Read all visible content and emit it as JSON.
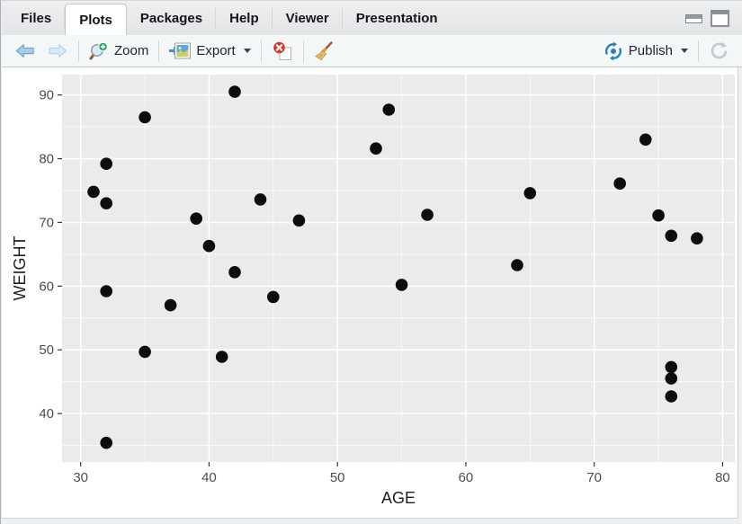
{
  "tabs": {
    "items": [
      {
        "label": "Files",
        "active": false
      },
      {
        "label": "Plots",
        "active": true
      },
      {
        "label": "Packages",
        "active": false
      },
      {
        "label": "Help",
        "active": false
      },
      {
        "label": "Viewer",
        "active": false
      },
      {
        "label": "Presentation",
        "active": false
      }
    ]
  },
  "window_controls": {
    "minimize_icon": "minimize-icon",
    "maximize_icon": "maximize-icon"
  },
  "toolbar": {
    "back": {
      "icon": "arrow-left-icon",
      "enabled": false
    },
    "forward": {
      "icon": "arrow-right-icon",
      "enabled": false
    },
    "zoom": {
      "label": "Zoom",
      "icon": "magnifier-plus-icon"
    },
    "export": {
      "label": "Export",
      "icon": "image-export-icon",
      "has_dropdown": true
    },
    "remove_plot": {
      "icon": "red-x-page-icon"
    },
    "clear_plots": {
      "icon": "broom-icon"
    },
    "publish": {
      "label": "Publish",
      "icon": "publish-swirl-icon",
      "has_dropdown": true
    },
    "refresh": {
      "icon": "refresh-icon"
    }
  },
  "colors": {
    "panel_background": "#ebebeb",
    "gridline": "#ffffff",
    "point": "#0d0d0d",
    "tick_text": "#4d4d4d",
    "axis_title": "#1f1f1f",
    "toolbar_background": "#f4f7f8",
    "tabbar_background": "#e6e8ea",
    "publish_blue": "#2f7cbe",
    "remove_red": "#d8372a"
  },
  "chart_data": {
    "type": "scatter",
    "title": "",
    "xlabel": "AGE",
    "ylabel": "WEIGHT",
    "xlim": [
      28.55,
      80.95
    ],
    "ylim": [
      32.4,
      93.2
    ],
    "x_ticks": [
      30,
      40,
      50,
      60,
      70,
      80
    ],
    "x_minor_ticks": [
      35,
      45,
      55,
      65,
      75
    ],
    "y_ticks": [
      40,
      50,
      60,
      70,
      80,
      90
    ],
    "y_minor_ticks": [
      35,
      45,
      55,
      65,
      75,
      85
    ],
    "grid": true,
    "legend": "none",
    "points": [
      [
        31,
        74.8
      ],
      [
        32,
        79.2
      ],
      [
        32,
        73.0
      ],
      [
        32,
        59.2
      ],
      [
        32,
        35.4
      ],
      [
        35,
        86.5
      ],
      [
        35,
        49.7
      ],
      [
        37,
        57.0
      ],
      [
        39,
        70.6
      ],
      [
        40,
        66.3
      ],
      [
        41,
        48.9
      ],
      [
        42,
        90.5
      ],
      [
        42,
        62.2
      ],
      [
        44,
        73.6
      ],
      [
        45,
        58.3
      ],
      [
        47,
        70.3
      ],
      [
        53,
        81.6
      ],
      [
        54,
        87.7
      ],
      [
        55,
        60.2
      ],
      [
        57,
        71.2
      ],
      [
        64,
        63.3
      ],
      [
        65,
        74.6
      ],
      [
        72,
        76.1
      ],
      [
        74,
        83.0
      ],
      [
        75,
        71.1
      ],
      [
        76,
        67.9
      ],
      [
        76,
        47.3
      ],
      [
        76,
        45.5
      ],
      [
        76,
        42.7
      ],
      [
        78,
        67.5
      ]
    ]
  }
}
